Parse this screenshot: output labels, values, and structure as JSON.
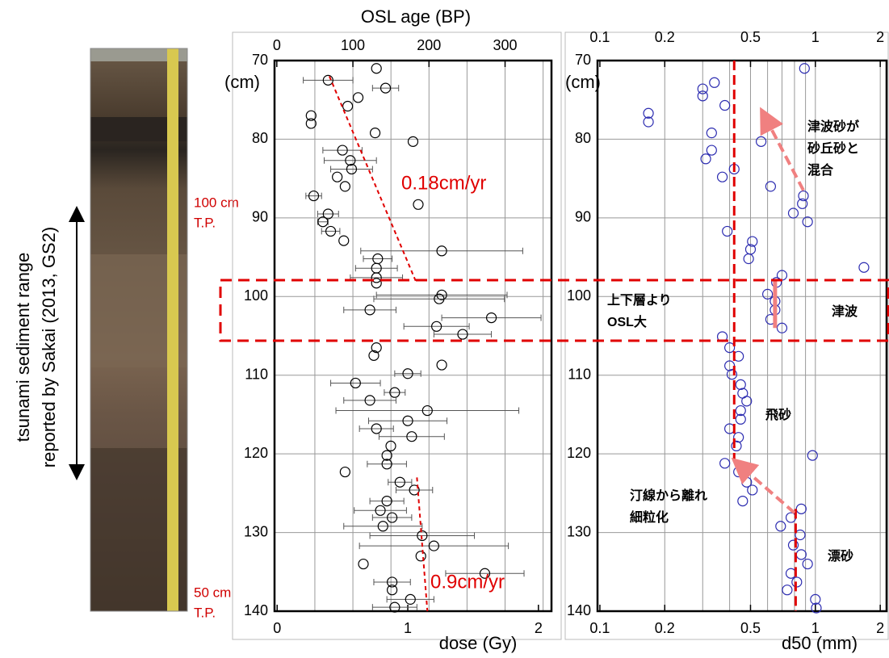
{
  "chart_data": [
    {
      "type": "scatter",
      "x_label": "dose (Gy)",
      "x2_label": "OSL age (BP)",
      "y_label": "(cm)",
      "xlim": [
        -0.02,
        2.1
      ],
      "xticks": [
        0,
        1,
        2
      ],
      "x2lim": [
        -3,
        361
      ],
      "x2ticks": [
        0,
        100,
        200,
        300
      ],
      "x2grid": [
        50,
        100,
        150,
        200,
        250,
        300,
        350
      ],
      "ylim": [
        70,
        140
      ],
      "yticks": [
        70,
        80,
        90,
        100,
        110,
        120,
        130,
        140
      ],
      "invert_y": true,
      "grid": true,
      "color": "#000000",
      "points": {
        "y": [
          71,
          72.5,
          73.5,
          74.7,
          75.8,
          77,
          78,
          79.2,
          80.3,
          81.4,
          82.7,
          83.8,
          84.8,
          86,
          87.2,
          88.3,
          89.5,
          90.5,
          91.7,
          92.9,
          94.2,
          95.2,
          96.4,
          97.6,
          98.3,
          99.8,
          100.3,
          101.7,
          102.7,
          103.8,
          104.8,
          106.5,
          107.5,
          108.7,
          109.8,
          111,
          112.2,
          113.2,
          114.5,
          115.8,
          116.8,
          117.8,
          119,
          120.2,
          121.3,
          122.3,
          123.6,
          124.6,
          126,
          127.2,
          128.1,
          129.2,
          130.4,
          131.7,
          133,
          134,
          135.2,
          136.3,
          137.3,
          138.5,
          139.5
        ],
        "x": [
          0.76,
          0.39,
          0.83,
          0.62,
          0.54,
          0.26,
          0.26,
          0.75,
          1.04,
          0.5,
          0.56,
          0.57,
          0.46,
          0.52,
          0.28,
          1.08,
          0.39,
          0.35,
          0.41,
          0.51,
          1.26,
          0.77,
          0.76,
          0.76,
          0.76,
          1.26,
          1.24,
          0.71,
          1.64,
          1.22,
          1.42,
          0.76,
          0.74,
          1.26,
          1.0,
          0.6,
          0.9,
          0.71,
          1.15,
          1.0,
          0.76,
          1.03,
          0.87,
          0.84,
          0.84,
          0.52,
          0.94,
          1.05,
          0.84,
          0.79,
          0.88,
          0.81,
          1.11,
          1.2,
          1.1,
          0.66,
          1.59,
          0.88,
          0.88,
          1.02,
          0.9
        ],
        "error": [
          null,
          0.19,
          0.1,
          null,
          null,
          null,
          null,
          null,
          null,
          0.15,
          0.2,
          0.16,
          null,
          null,
          0.06,
          null,
          0.08,
          0.04,
          0.07,
          null,
          0.62,
          0.11,
          0.16,
          0.2,
          null,
          0.5,
          0.5,
          0.2,
          0.38,
          0.25,
          0.22,
          null,
          null,
          null,
          0.1,
          0.19,
          0.08,
          0.2,
          0.7,
          0.3,
          0.13,
          0.25,
          null,
          null,
          0.15,
          null,
          0.09,
          0.14,
          0.13,
          0.2,
          0.15,
          0.3,
          0.4,
          0.57,
          null,
          null,
          0.3,
          0.14,
          null,
          0.18,
          0.17
        ]
      },
      "trend_lines": [
        {
          "x": [
            0.4,
            1.06
          ],
          "y": [
            72,
            98
          ],
          "label": "0.18cm/yr",
          "color": "#e00000"
        },
        {
          "x": [
            1.07,
            1.15
          ],
          "y": [
            123,
            140
          ],
          "label": "0.9cm/yr",
          "color": "#e00000"
        }
      ]
    },
    {
      "type": "scatter",
      "x_label": "d50 (mm)",
      "y_label": "(cm)",
      "log_x": true,
      "xlim": [
        0.0975,
        2.14
      ],
      "xticks": [
        0.1,
        0.2,
        0.5,
        1,
        2
      ],
      "xgrid": [
        0.2,
        0.3,
        0.4,
        0.5,
        0.6,
        0.7,
        0.8,
        0.9,
        1,
        2
      ],
      "ylim": [
        70,
        140
      ],
      "yticks": [
        70,
        80,
        90,
        100,
        110,
        120,
        130,
        140
      ],
      "invert_y": true,
      "grid": true,
      "color": "#2b2bb0",
      "points": {
        "y": [
          71,
          72.8,
          73.6,
          74.5,
          75.7,
          76.7,
          77.8,
          79.2,
          80.3,
          81.4,
          82.5,
          83.8,
          84.8,
          86,
          87.2,
          88.2,
          89.4,
          90.5,
          91.7,
          93,
          94,
          95.2,
          96.3,
          97.3,
          98.2,
          99.7,
          100.6,
          101.7,
          102.9,
          104,
          105.1,
          106.5,
          107.6,
          108.8,
          109.9,
          111.2,
          112.3,
          113.3,
          114.5,
          115.6,
          116.8,
          117.9,
          119,
          120.2,
          121.2,
          122.3,
          123.6,
          124.6,
          126,
          127,
          128.1,
          129.2,
          130.3,
          131.6,
          132.8,
          134,
          135.2,
          136.3,
          137.3,
          138.5,
          139.6
        ],
        "x": [
          0.89,
          0.34,
          0.3,
          0.3,
          0.38,
          0.168,
          0.168,
          0.33,
          0.56,
          0.33,
          0.31,
          0.42,
          0.37,
          0.62,
          0.88,
          0.87,
          0.79,
          0.92,
          0.39,
          0.51,
          0.5,
          0.49,
          1.68,
          0.7,
          0.66,
          0.6,
          0.65,
          0.65,
          0.62,
          0.7,
          0.37,
          0.4,
          0.44,
          0.4,
          0.41,
          0.45,
          0.46,
          0.48,
          0.45,
          0.45,
          0.4,
          0.44,
          0.43,
          0.97,
          0.38,
          0.44,
          0.48,
          0.51,
          0.46,
          0.86,
          0.77,
          0.69,
          0.85,
          0.79,
          0.86,
          0.92,
          0.77,
          0.82,
          0.74,
          1.0,
          1.01
        ]
      },
      "ref_lines": [
        {
          "x": [
            0.42,
            0.42
          ],
          "y": [
            70,
            121
          ],
          "color": "#e00000"
        },
        {
          "x": [
            0.81,
            0.81
          ],
          "y": [
            127,
            140
          ],
          "color": "#e00000"
        }
      ],
      "highlight": {
        "x": [
          0.65,
          0.65
        ],
        "y": [
          98,
          104
        ],
        "color": "#f08080"
      },
      "arrows": [
        {
          "x": [
            0.8,
            0.44
          ],
          "y": [
            127.5,
            121.3
          ],
          "color": "#f08080"
        },
        {
          "x": [
            0.88,
            0.58
          ],
          "y": [
            86.5,
            77
          ],
          "color": "#f08080"
        }
      ],
      "annotations": [
        [
          "上下層より",
          "OSL大"
        ],
        [
          "津波砂が",
          "砂丘砂と",
          "混合"
        ],
        [
          "津波"
        ],
        [
          "飛砂"
        ],
        [
          "汀線から離れ",
          "細粒化"
        ],
        [
          "漂砂"
        ]
      ]
    }
  ],
  "core": {
    "labels": [
      [
        "100 cm",
        "T.P."
      ],
      [
        "50 cm",
        "T.P."
      ]
    ]
  },
  "range_note": [
    "tsunami sediment range",
    "reported by Sakai (2013, GS2)"
  ]
}
